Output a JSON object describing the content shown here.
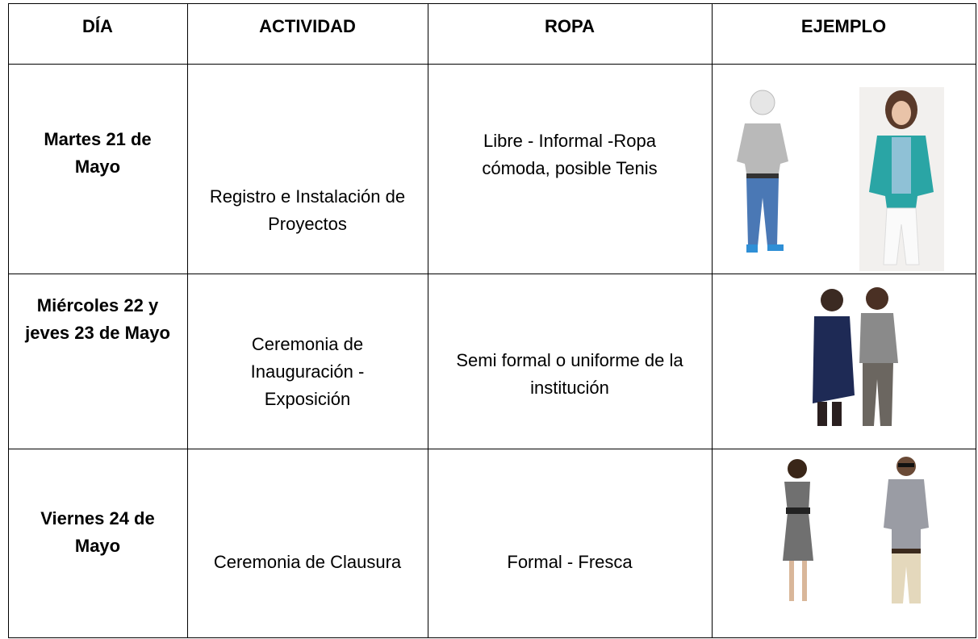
{
  "table": {
    "header": [
      "DÍA",
      "ACTIVIDAD",
      "ROPA",
      "EJEMPLO"
    ],
    "rows": [
      {
        "day": [
          "Martes 21 de",
          "Mayo"
        ],
        "activity": [
          "Registro e Instalación de",
          "Proyectos"
        ],
        "clothing": [
          "Libre - Informal -Ropa",
          "cómoda, posible Tenis"
        ]
      },
      {
        "day": [
          "Miércoles 22 y",
          "jeves 23 de Mayo"
        ],
        "activity": [
          "Ceremonia de",
          "Inauguración -",
          "Exposición"
        ],
        "clothing": [
          "Semi formal o uniforme de la",
          "institución"
        ]
      },
      {
        "day": [
          "Viernes 24 de",
          "Mayo"
        ],
        "activity": [
          "Ceremonia de Clausura"
        ],
        "clothing": [
          "Formal - Fresca"
        ]
      }
    ]
  }
}
